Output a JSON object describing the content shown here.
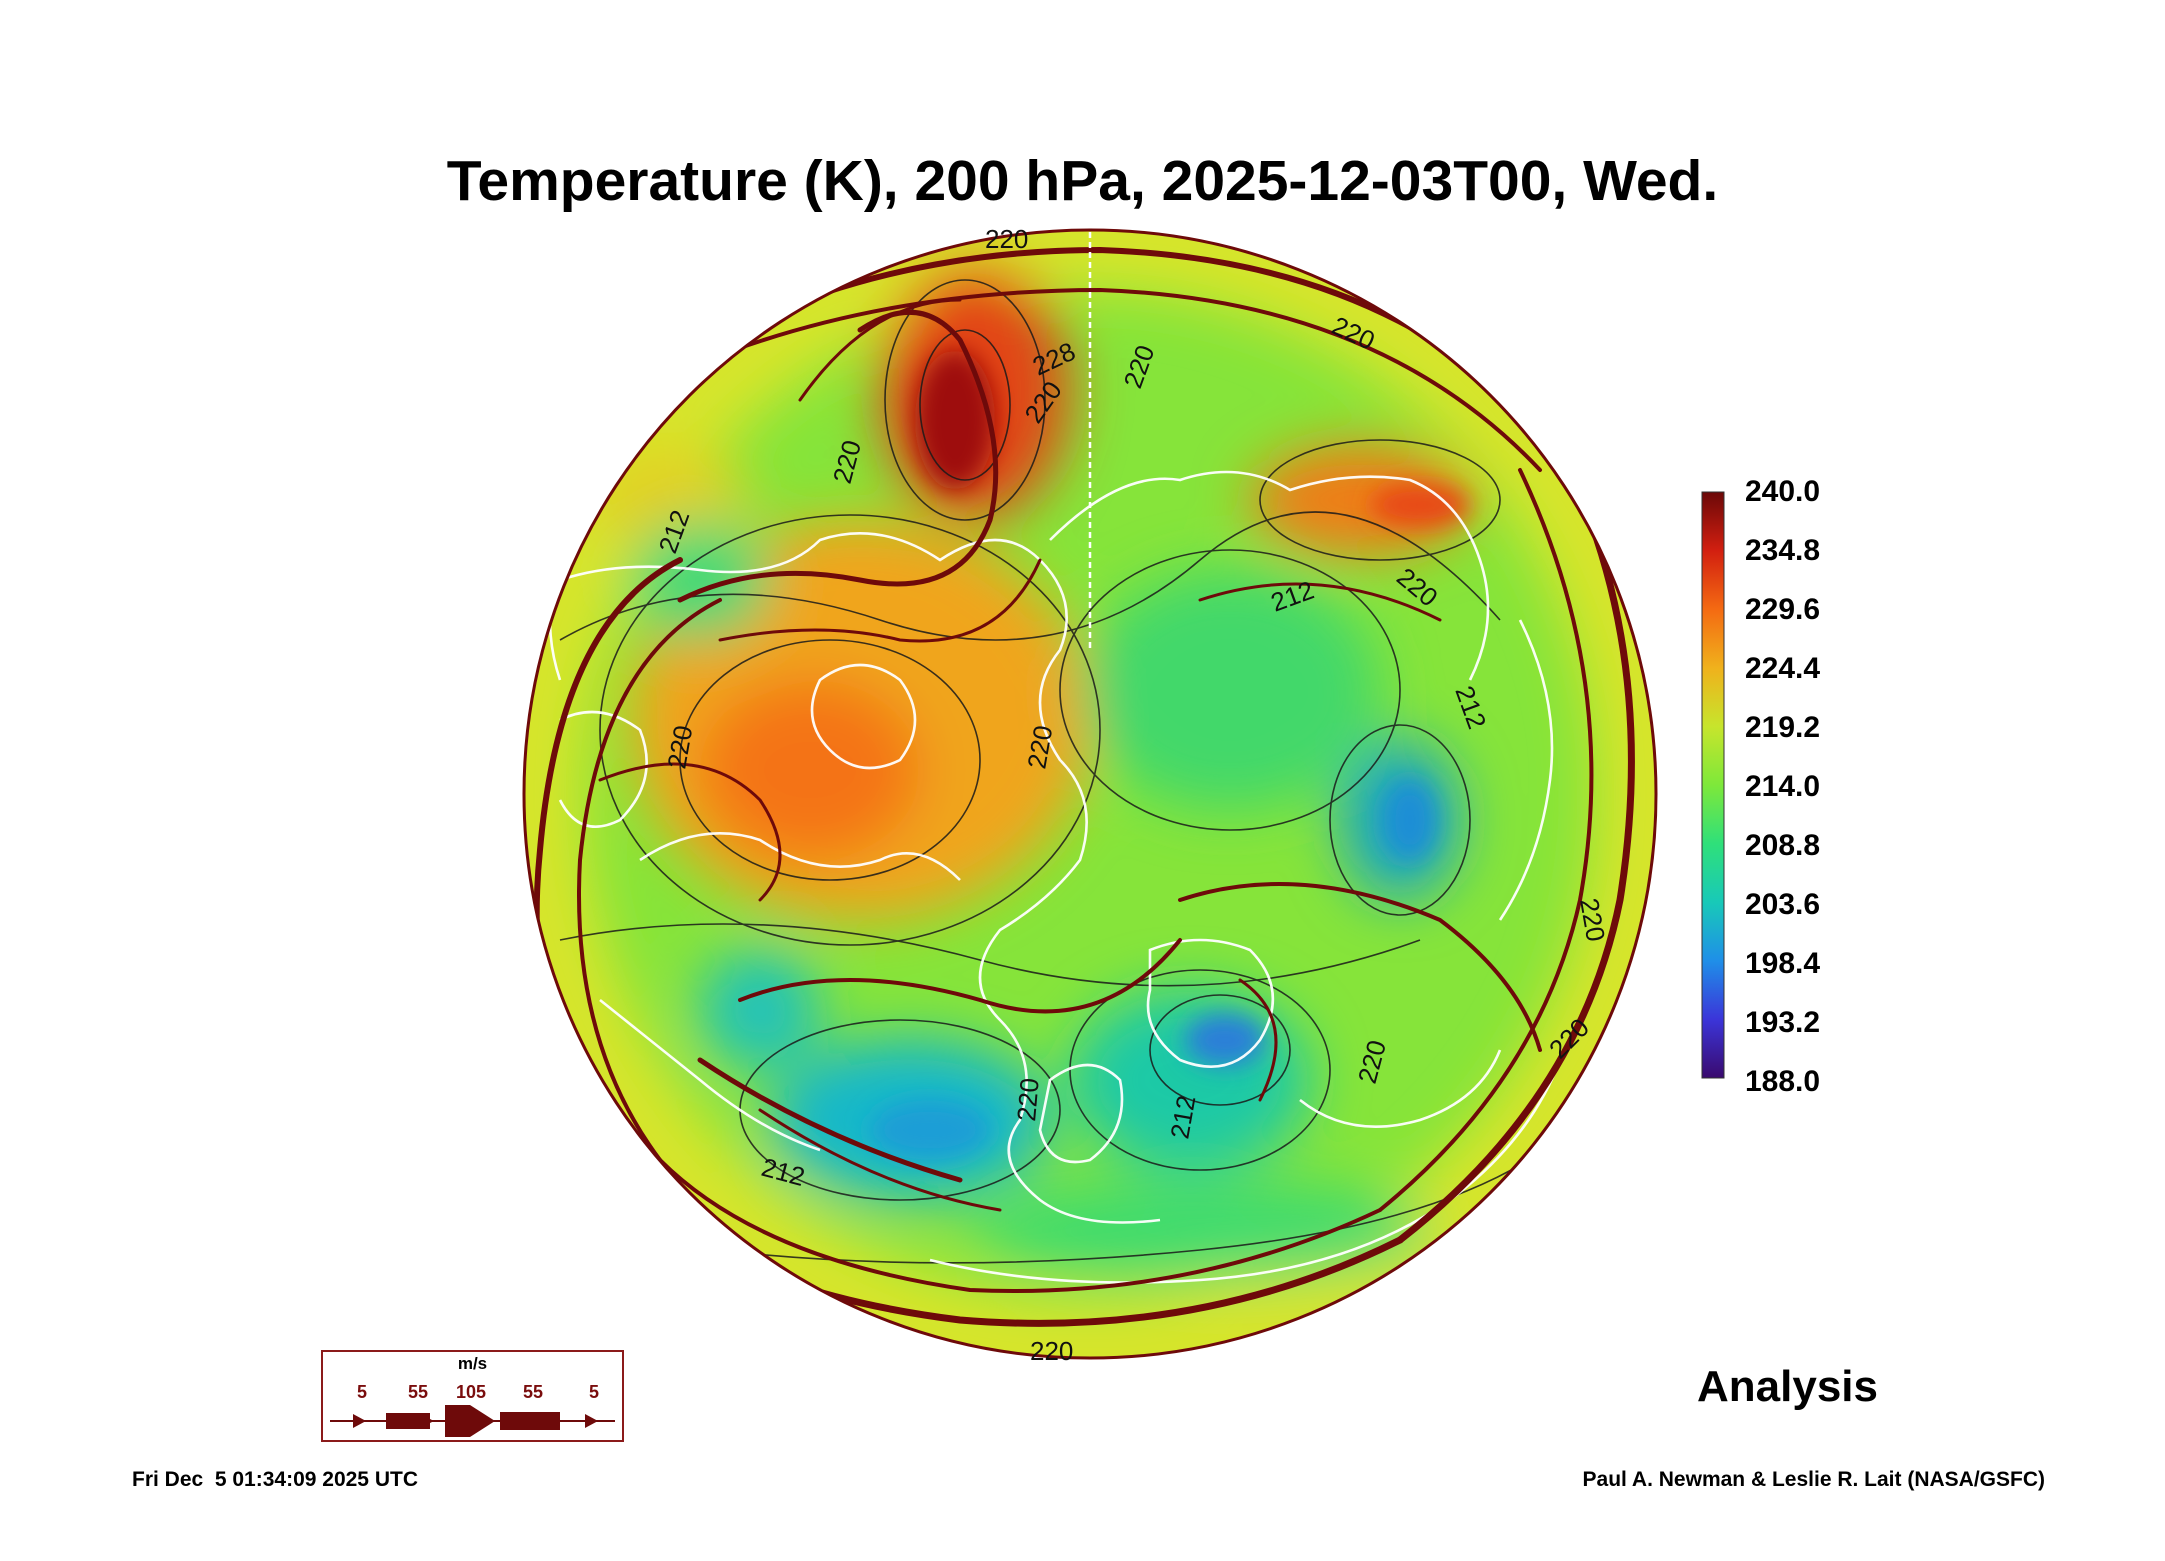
{
  "title": "Temperature (K), 200 hPa, 2025-12-03T00, Wed.",
  "colorbar": {
    "labels": [
      "240.0",
      "234.8",
      "229.6",
      "224.4",
      "219.2",
      "214.0",
      "208.8",
      "203.6",
      "198.4",
      "193.2",
      "188.0"
    ],
    "min": 188.0,
    "max": 240.0,
    "colors": [
      "#3a0a6e",
      "#3b35d9",
      "#1f8fe8",
      "#18c9b8",
      "#2fe07a",
      "#7ee83a",
      "#c7e52c",
      "#f0b11c",
      "#f46a12",
      "#d21f10",
      "#6b0808"
    ]
  },
  "contour_labels": [
    "220",
    "228",
    "220",
    "220",
    "220",
    "220",
    "212",
    "212",
    "220",
    "212",
    "220",
    "220",
    "220",
    "212",
    "220",
    "212",
    "220",
    "220",
    "220"
  ],
  "wind_legend": {
    "unit": "m/s",
    "speeds": [
      "5",
      "55",
      "105",
      "55",
      "5"
    ]
  },
  "analysis_label": "Analysis",
  "footer_left": "Fri Dec  5 01:34:09 2025 UTC",
  "footer_right": "Paul A. Newman & Leslie R. Lait (NASA/GSFC)",
  "streamline_color": "#6e0a0a",
  "coastline_color": "#ffffff"
}
